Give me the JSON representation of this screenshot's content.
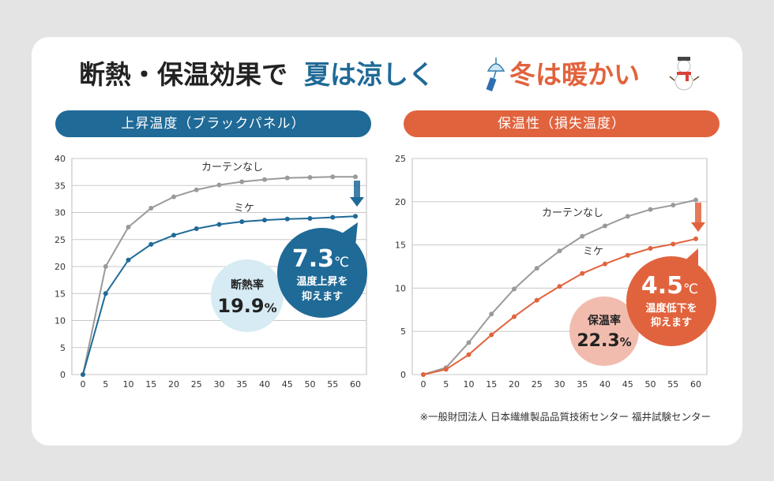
{
  "page": {
    "title_part1": "断熱・保温効果で",
    "title_part2": "夏は涼しく",
    "title_part3": "冬は暖かい",
    "footnote": "※一般財団法人 日本繊維製品品質技術センター 福井試験センター"
  },
  "colors": {
    "blue": "#1f6a97",
    "orange": "#e1633d",
    "gray_line": "#9a9a9a",
    "light_blue_circle": "#d6ebf3",
    "light_orange_circle": "#f1bcae",
    "title_dark": "#222222"
  },
  "chart_data": [
    {
      "id": "insulation",
      "type": "line",
      "title": "上昇温度（ブラックパネル）",
      "x": [
        0,
        5,
        10,
        15,
        20,
        25,
        30,
        35,
        40,
        45,
        50,
        55,
        60
      ],
      "xlim": [
        0,
        60
      ],
      "ylim": [
        0,
        40
      ],
      "yticks": [
        0,
        5,
        10,
        15,
        20,
        25,
        30,
        35,
        40
      ],
      "series": [
        {
          "name": "カーテンなし",
          "color": "#9a9a9a",
          "values": [
            0,
            20.0,
            27.3,
            30.8,
            32.9,
            34.2,
            35.1,
            35.7,
            36.1,
            36.4,
            36.5,
            36.6,
            36.6
          ]
        },
        {
          "name": "ミケ",
          "color": "#1f6a97",
          "values": [
            0,
            15.0,
            21.2,
            24.1,
            25.8,
            27.0,
            27.8,
            28.3,
            28.6,
            28.8,
            28.9,
            29.1,
            29.3
          ]
        }
      ],
      "badge_value": "7.3",
      "badge_unit": "℃",
      "badge_text_1": "温度上昇を",
      "badge_text_2": "抑えます",
      "rate_label": "断熱率",
      "rate_value": "19.9",
      "rate_unit": "%"
    },
    {
      "id": "heat_retention",
      "type": "line",
      "title": "保温性（損失温度）",
      "x": [
        0,
        5,
        10,
        15,
        20,
        25,
        30,
        35,
        40,
        45,
        50,
        55,
        60
      ],
      "xlim": [
        0,
        60
      ],
      "ylim": [
        0,
        25
      ],
      "yticks": [
        0,
        5,
        10,
        15,
        20,
        25
      ],
      "series": [
        {
          "name": "カーテンなし",
          "color": "#9a9a9a",
          "values": [
            0,
            0.8,
            3.7,
            7.0,
            9.9,
            12.3,
            14.3,
            16.0,
            17.2,
            18.3,
            19.1,
            19.6,
            20.2
          ]
        },
        {
          "name": "ミケ",
          "color": "#e1633d",
          "values": [
            0,
            0.6,
            2.3,
            4.6,
            6.7,
            8.6,
            10.2,
            11.7,
            12.8,
            13.8,
            14.6,
            15.1,
            15.7
          ]
        }
      ],
      "badge_value": "4.5",
      "badge_unit": "℃",
      "badge_text_1": "温度低下を",
      "badge_text_2": "抑えます",
      "rate_label": "保温率",
      "rate_value": "22.3",
      "rate_unit": "%"
    }
  ]
}
